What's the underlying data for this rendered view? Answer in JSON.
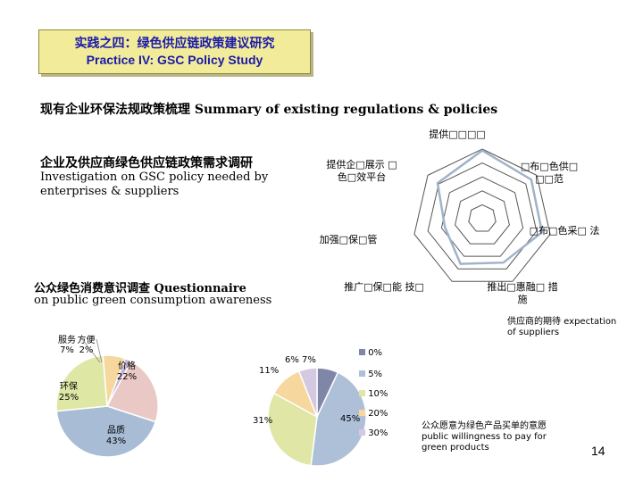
{
  "title": {
    "cn": "实践之四：绿色供应链政策建议研究",
    "en": "Practice IV: GSC Policy Study"
  },
  "summary_heading": "现有企业环保法规政策梳理 Summary of existing regulations & policies",
  "investigation": {
    "heading": "企业及供应商绿色供应链政策需求调研",
    "sub": "Investigation on GSC policy needed by enterprises & suppliers"
  },
  "questionnaire": {
    "heading": "公众绿色消费意识调查 Questionnaire",
    "sub": "on public green consumption awareness"
  },
  "radar": {
    "labels": [
      "提供□□□□",
      "□布□色供□ □□范",
      "□布□色采□ 法",
      "推出□惠融□ 措施",
      "推广□保□能 技□",
      "加强□保□管",
      "提供企□展示 □色□效平台"
    ],
    "caption": "供应商的期待 expectation of suppliers"
  },
  "pie1": {
    "slices": [
      {
        "label": "价格",
        "value": 22,
        "color": "#e9c8c5"
      },
      {
        "label": "品质",
        "value": 43,
        "color": "#a9bcd6"
      },
      {
        "label": "环保",
        "value": 25,
        "color": "#dfe7a5"
      },
      {
        "label": "服务",
        "value": 7,
        "color": "#f6d79d"
      },
      {
        "label": "方便",
        "value": 2,
        "color": "#c5b3d4"
      }
    ],
    "label_texts": {
      "price": "价格\n22%",
      "quality": "品质\n43%",
      "env": "环保\n25%",
      "service": "服务\n7%",
      "convenience": "方便\n2%"
    }
  },
  "pie2": {
    "slices": [
      {
        "label": "0%",
        "value": 7,
        "color": "#7f86a8"
      },
      {
        "label": "5%",
        "value": 45,
        "color": "#aec0d8"
      },
      {
        "label": "10%",
        "value": 31,
        "color": "#dfe6a6"
      },
      {
        "label": "20%",
        "value": 11,
        "color": "#f6d79d"
      },
      {
        "label": "30%",
        "value": 6,
        "color": "#d4c9e0"
      }
    ],
    "pct_labels": [
      "7%",
      "45%",
      "31%",
      "11%",
      "6%"
    ],
    "legend": [
      "0%",
      "5%",
      "10%",
      "20%",
      "30%"
    ],
    "caption": "公众愿意为绿色产品买单的意愿 public willingness to pay for green products"
  },
  "page_number": "14"
}
